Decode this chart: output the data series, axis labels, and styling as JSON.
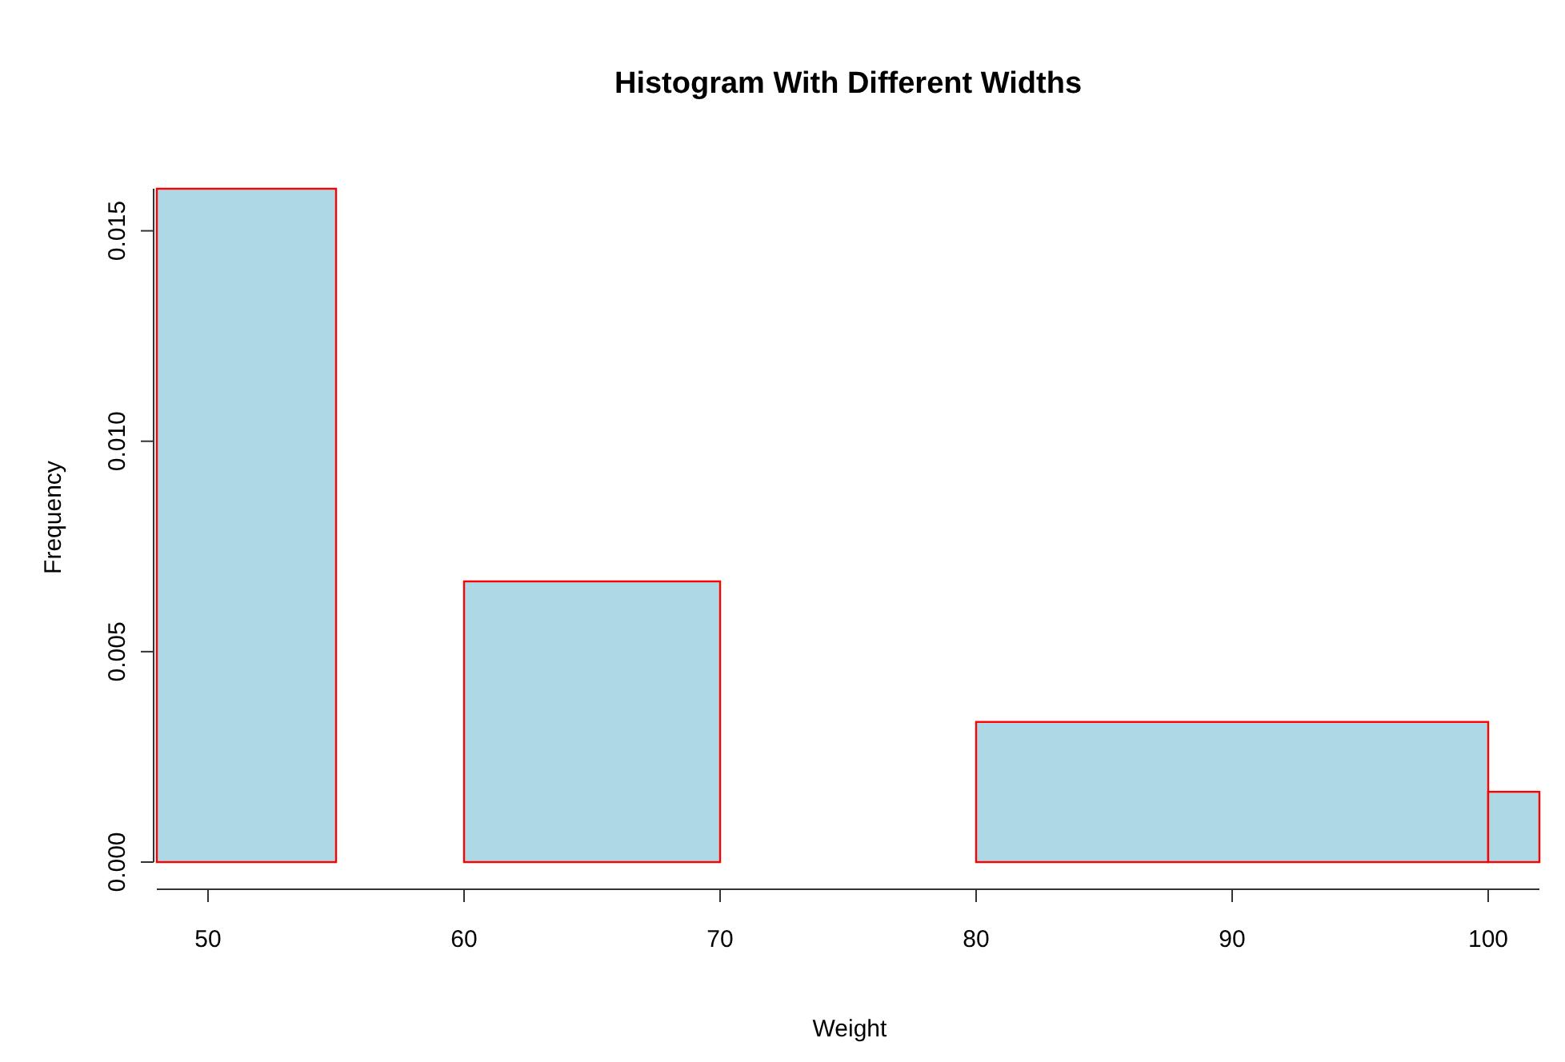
{
  "chart_data": {
    "type": "histogram",
    "title": "Histogram With Different Widths",
    "xlabel": "Weight",
    "ylabel": "Frequency",
    "bins": [
      48,
      55,
      60,
      70,
      80,
      100,
      102
    ],
    "values": [
      0.016,
      0,
      0.00667,
      0,
      0.00333,
      0.00167
    ],
    "color": "#add8e6",
    "xlim": [
      48,
      102
    ],
    "ylim": [
      0,
      0.016
    ],
    "xticks": [
      50,
      60,
      70,
      80,
      90,
      100
    ],
    "yticks": [
      {
        "value": 0,
        "label": "0.000"
      },
      {
        "value": 0.005,
        "label": "0.005"
      },
      {
        "value": 0.01,
        "label": "0.010"
      },
      {
        "value": 0.015,
        "label": "0.015"
      }
    ],
    "grid": false
  }
}
